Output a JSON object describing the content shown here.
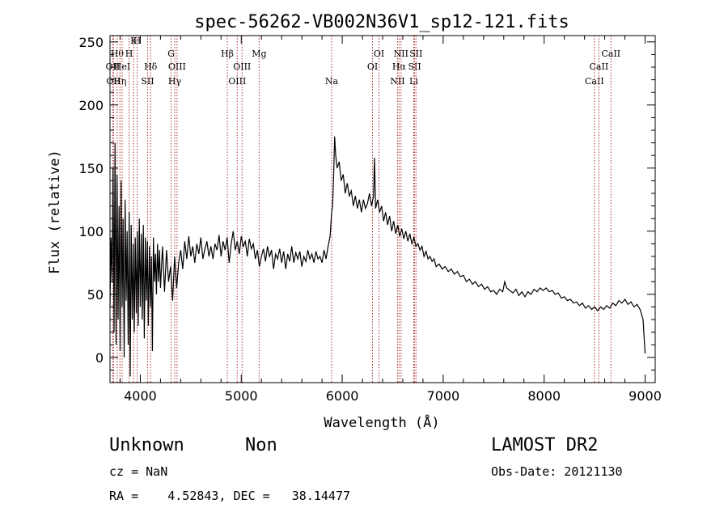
{
  "chart_data": {
    "type": "line",
    "title": "spec-56262-VB002N36V1_sp12-121.fits",
    "xlabel": "Wavelength (Å)",
    "ylabel": "Flux (relative)",
    "xlim": [
      3700,
      9100
    ],
    "ylim": [
      -20,
      255
    ],
    "xticks": [
      4000,
      5000,
      6000,
      7000,
      8000,
      9000
    ],
    "yticks": [
      0,
      50,
      100,
      150,
      200,
      250
    ],
    "grid": false,
    "series": [
      {
        "points": [
          [
            3700,
            40
          ],
          [
            3710,
            95
          ],
          [
            3720,
            60
          ],
          [
            3730,
            150
          ],
          [
            3740,
            20
          ],
          [
            3750,
            170
          ],
          [
            3760,
            10
          ],
          [
            3770,
            145
          ],
          [
            3780,
            30
          ],
          [
            3790,
            120
          ],
          [
            3800,
            5
          ],
          [
            3810,
            140
          ],
          [
            3820,
            40
          ],
          [
            3830,
            110
          ],
          [
            3840,
            0
          ],
          [
            3850,
            125
          ],
          [
            3860,
            45
          ],
          [
            3870,
            100
          ],
          [
            3880,
            10
          ],
          [
            3890,
            115
          ],
          [
            3900,
            -15
          ],
          [
            3910,
            105
          ],
          [
            3920,
            30
          ],
          [
            3930,
            90
          ],
          [
            3940,
            20
          ],
          [
            3950,
            95
          ],
          [
            3960,
            35
          ],
          [
            3970,
            100
          ],
          [
            3980,
            25
          ],
          [
            3990,
            110
          ],
          [
            4000,
            40
          ],
          [
            4010,
            98
          ],
          [
            4020,
            30
          ],
          [
            4030,
            105
          ],
          [
            4040,
            15
          ],
          [
            4050,
            95
          ],
          [
            4060,
            45
          ],
          [
            4070,
            92
          ],
          [
            4080,
            25
          ],
          [
            4090,
            88
          ],
          [
            4100,
            40
          ],
          [
            4110,
            80
          ],
          [
            4120,
            5
          ],
          [
            4130,
            95
          ],
          [
            4140,
            60
          ],
          [
            4150,
            82
          ],
          [
            4160,
            50
          ],
          [
            4170,
            90
          ],
          [
            4180,
            60
          ],
          [
            4190,
            85
          ],
          [
            4200,
            55
          ],
          [
            4220,
            88
          ],
          [
            4240,
            52
          ],
          [
            4260,
            85
          ],
          [
            4280,
            60
          ],
          [
            4300,
            72
          ],
          [
            4320,
            45
          ],
          [
            4340,
            80
          ],
          [
            4360,
            55
          ],
          [
            4380,
            75
          ],
          [
            4400,
            85
          ],
          [
            4420,
            70
          ],
          [
            4440,
            92
          ],
          [
            4460,
            78
          ],
          [
            4480,
            96
          ],
          [
            4500,
            80
          ],
          [
            4520,
            88
          ],
          [
            4540,
            75
          ],
          [
            4560,
            90
          ],
          [
            4580,
            82
          ],
          [
            4600,
            95
          ],
          [
            4620,
            78
          ],
          [
            4640,
            86
          ],
          [
            4660,
            92
          ],
          [
            4680,
            80
          ],
          [
            4700,
            88
          ],
          [
            4720,
            78
          ],
          [
            4740,
            90
          ],
          [
            4760,
            85
          ],
          [
            4780,
            97
          ],
          [
            4800,
            80
          ],
          [
            4820,
            92
          ],
          [
            4840,
            85
          ],
          [
            4860,
            95
          ],
          [
            4880,
            75
          ],
          [
            4900,
            90
          ],
          [
            4920,
            100
          ],
          [
            4940,
            85
          ],
          [
            4960,
            92
          ],
          [
            4980,
            82
          ],
          [
            5000,
            96
          ],
          [
            5020,
            88
          ],
          [
            5040,
            92
          ],
          [
            5060,
            80
          ],
          [
            5080,
            94
          ],
          [
            5100,
            86
          ],
          [
            5120,
            90
          ],
          [
            5140,
            78
          ],
          [
            5160,
            85
          ],
          [
            5180,
            72
          ],
          [
            5200,
            80
          ],
          [
            5220,
            86
          ],
          [
            5240,
            76
          ],
          [
            5260,
            88
          ],
          [
            5280,
            80
          ],
          [
            5300,
            85
          ],
          [
            5320,
            70
          ],
          [
            5340,
            82
          ],
          [
            5360,
            78
          ],
          [
            5380,
            86
          ],
          [
            5400,
            75
          ],
          [
            5420,
            84
          ],
          [
            5440,
            70
          ],
          [
            5460,
            82
          ],
          [
            5480,
            76
          ],
          [
            5500,
            88
          ],
          [
            5520,
            75
          ],
          [
            5540,
            83
          ],
          [
            5560,
            78
          ],
          [
            5580,
            84
          ],
          [
            5600,
            72
          ],
          [
            5620,
            80
          ],
          [
            5640,
            76
          ],
          [
            5660,
            85
          ],
          [
            5680,
            78
          ],
          [
            5700,
            82
          ],
          [
            5720,
            75
          ],
          [
            5740,
            84
          ],
          [
            5760,
            78
          ],
          [
            5780,
            80
          ],
          [
            5800,
            75
          ],
          [
            5820,
            85
          ],
          [
            5840,
            78
          ],
          [
            5860,
            88
          ],
          [
            5880,
            96
          ],
          [
            5895,
            115
          ],
          [
            5905,
            120
          ],
          [
            5915,
            145
          ],
          [
            5925,
            175
          ],
          [
            5935,
            160
          ],
          [
            5950,
            150
          ],
          [
            5970,
            155
          ],
          [
            5990,
            140
          ],
          [
            6010,
            145
          ],
          [
            6030,
            130
          ],
          [
            6050,
            138
          ],
          [
            6070,
            128
          ],
          [
            6090,
            132
          ],
          [
            6110,
            120
          ],
          [
            6130,
            128
          ],
          [
            6150,
            118
          ],
          [
            6170,
            125
          ],
          [
            6190,
            115
          ],
          [
            6210,
            125
          ],
          [
            6230,
            118
          ],
          [
            6250,
            122
          ],
          [
            6270,
            130
          ],
          [
            6290,
            120
          ],
          [
            6310,
            128
          ],
          [
            6320,
            158
          ],
          [
            6330,
            118
          ],
          [
            6350,
            125
          ],
          [
            6370,
            115
          ],
          [
            6390,
            120
          ],
          [
            6410,
            108
          ],
          [
            6430,
            115
          ],
          [
            6450,
            105
          ],
          [
            6470,
            112
          ],
          [
            6490,
            100
          ],
          [
            6510,
            108
          ],
          [
            6530,
            98
          ],
          [
            6550,
            105
          ],
          [
            6570,
            96
          ],
          [
            6590,
            102
          ],
          [
            6610,
            94
          ],
          [
            6630,
            100
          ],
          [
            6650,
            92
          ],
          [
            6670,
            98
          ],
          [
            6690,
            90
          ],
          [
            6710,
            95
          ],
          [
            6730,
            88
          ],
          [
            6750,
            90
          ],
          [
            6770,
            85
          ],
          [
            6790,
            88
          ],
          [
            6810,
            80
          ],
          [
            6830,
            84
          ],
          [
            6850,
            78
          ],
          [
            6870,
            80
          ],
          [
            6890,
            76
          ],
          [
            6910,
            78
          ],
          [
            6930,
            72
          ],
          [
            6960,
            74
          ],
          [
            6990,
            70
          ],
          [
            7020,
            72
          ],
          [
            7050,
            68
          ],
          [
            7080,
            70
          ],
          [
            7110,
            66
          ],
          [
            7140,
            68
          ],
          [
            7170,
            64
          ],
          [
            7200,
            65
          ],
          [
            7230,
            60
          ],
          [
            7260,
            62
          ],
          [
            7290,
            58
          ],
          [
            7320,
            60
          ],
          [
            7350,
            56
          ],
          [
            7380,
            58
          ],
          [
            7410,
            54
          ],
          [
            7440,
            56
          ],
          [
            7470,
            52
          ],
          [
            7500,
            53
          ],
          [
            7530,
            50
          ],
          [
            7560,
            54
          ],
          [
            7590,
            52
          ],
          [
            7610,
            60
          ],
          [
            7630,
            55
          ],
          [
            7660,
            53
          ],
          [
            7690,
            51
          ],
          [
            7720,
            54
          ],
          [
            7750,
            49
          ],
          [
            7780,
            52
          ],
          [
            7810,
            48
          ],
          [
            7840,
            52
          ],
          [
            7870,
            50
          ],
          [
            7900,
            54
          ],
          [
            7930,
            52
          ],
          [
            7960,
            55
          ],
          [
            7990,
            53
          ],
          [
            8020,
            55
          ],
          [
            8050,
            52
          ],
          [
            8080,
            53
          ],
          [
            8110,
            50
          ],
          [
            8140,
            51
          ],
          [
            8170,
            47
          ],
          [
            8200,
            48
          ],
          [
            8230,
            45
          ],
          [
            8260,
            46
          ],
          [
            8290,
            43
          ],
          [
            8320,
            44
          ],
          [
            8350,
            41
          ],
          [
            8380,
            43
          ],
          [
            8410,
            39
          ],
          [
            8440,
            41
          ],
          [
            8470,
            38
          ],
          [
            8500,
            40
          ],
          [
            8530,
            37
          ],
          [
            8560,
            40
          ],
          [
            8590,
            38
          ],
          [
            8620,
            41
          ],
          [
            8650,
            39
          ],
          [
            8680,
            43
          ],
          [
            8710,
            41
          ],
          [
            8740,
            45
          ],
          [
            8770,
            43
          ],
          [
            8800,
            46
          ],
          [
            8830,
            42
          ],
          [
            8860,
            44
          ],
          [
            8890,
            40
          ],
          [
            8920,
            42
          ],
          [
            8950,
            38
          ],
          [
            8980,
            30
          ],
          [
            9000,
            3
          ]
        ]
      }
    ],
    "line_markers": [
      {
        "x": 3727,
        "label": "OII",
        "row": 2
      },
      {
        "x": 3735,
        "label": "OII",
        "row": 3
      },
      {
        "x": 3771,
        "label": "Hθ",
        "row": 1
      },
      {
        "x": 3798,
        "label": "Hη",
        "row": 3
      },
      {
        "x": 3820,
        "label": "HeI",
        "row": 2
      },
      {
        "x": 3889,
        "label": "H",
        "row": 1
      },
      {
        "x": 3934,
        "label": "K",
        "row": 0
      },
      {
        "x": 3969,
        "label": "H",
        "row": 0
      },
      {
        "x": 4072,
        "label": "SII",
        "row": 3
      },
      {
        "x": 4102,
        "label": "Hδ",
        "row": 2
      },
      {
        "x": 4305,
        "label": "G",
        "row": 1
      },
      {
        "x": 4341,
        "label": "Hγ",
        "row": 3
      },
      {
        "x": 4364,
        "label": "OIII",
        "row": 2
      },
      {
        "x": 4862,
        "label": "Hβ",
        "row": 1
      },
      {
        "x": 4960,
        "label": "OIII",
        "row": 3
      },
      {
        "x": 5008,
        "label": "OIII",
        "row": 2
      },
      {
        "x": 5177,
        "label": "Mg",
        "row": 1
      },
      {
        "x": 5895,
        "label": "Na",
        "row": 3
      },
      {
        "x": 6300,
        "label": "OI",
        "row": 2
      },
      {
        "x": 6364,
        "label": "OI",
        "row": 1
      },
      {
        "x": 6548,
        "label": "NII",
        "row": 3
      },
      {
        "x": 6563,
        "label": "Hα",
        "row": 2
      },
      {
        "x": 6583,
        "label": "NII",
        "row": 1
      },
      {
        "x": 6708,
        "label": "Li",
        "row": 3
      },
      {
        "x": 6717,
        "label": "SII",
        "row": 2
      },
      {
        "x": 6731,
        "label": "SII",
        "row": 1
      },
      {
        "x": 8498,
        "label": "CaII",
        "row": 3
      },
      {
        "x": 8542,
        "label": "CaII",
        "row": 2
      },
      {
        "x": 8662,
        "label": "CaII",
        "row": 1
      }
    ]
  },
  "info": {
    "object_class": "Unknown",
    "subclass": "Non",
    "survey": "LAMOST DR2",
    "cz": "cz = NaN",
    "obs_date": "Obs-Date: 20121130",
    "radec": "RA =    4.52843, DEC =   38.14477"
  }
}
